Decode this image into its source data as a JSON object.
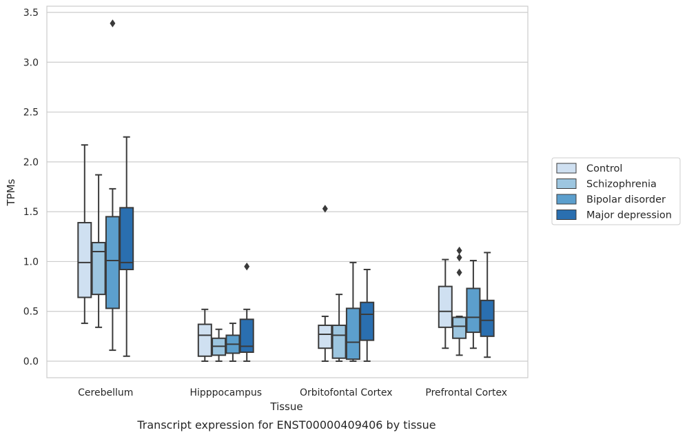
{
  "chart_data": {
    "type": "box",
    "xlabel": "Tissue",
    "ylabel": "TPMs",
    "caption": "Transcript expression for ENST00000409406 by tissue",
    "ylim": [
      -0.17,
      3.57
    ],
    "yticks": [
      "0.0",
      "0.5",
      "1.0",
      "1.5",
      "2.0",
      "2.5",
      "3.0",
      "3.5"
    ],
    "grid": true,
    "legend_position": "right",
    "categories": [
      "Cerebellum",
      "Hipppocampus",
      "Orbitofontal Cortex",
      "Prefrontal Cortex"
    ],
    "series": [
      {
        "name": "Control",
        "color": "#cfe0f1",
        "boxes": [
          {
            "whislo": 0.38,
            "q1": 0.64,
            "med": 0.99,
            "q3": 1.39,
            "whishi": 2.17,
            "fliers": []
          },
          {
            "whislo": 0.0,
            "q1": 0.05,
            "med": 0.26,
            "q3": 0.37,
            "whishi": 0.52,
            "fliers": []
          },
          {
            "whislo": 0.0,
            "q1": 0.13,
            "med": 0.27,
            "q3": 0.36,
            "whishi": 0.45,
            "fliers": [
              1.53
            ]
          },
          {
            "whislo": 0.13,
            "q1": 0.34,
            "med": 0.5,
            "q3": 0.75,
            "whishi": 1.02,
            "fliers": []
          }
        ]
      },
      {
        "name": "Schizophrenia",
        "color": "#9dc6e0",
        "boxes": [
          {
            "whislo": 0.34,
            "q1": 0.67,
            "med": 1.1,
            "q3": 1.19,
            "whishi": 1.87,
            "fliers": []
          },
          {
            "whislo": 0.0,
            "q1": 0.06,
            "med": 0.15,
            "q3": 0.23,
            "whishi": 0.32,
            "fliers": []
          },
          {
            "whislo": 0.0,
            "q1": 0.03,
            "med": 0.26,
            "q3": 0.36,
            "whishi": 0.67,
            "fliers": []
          },
          {
            "whislo": 0.06,
            "q1": 0.23,
            "med": 0.35,
            "q3": 0.44,
            "whishi": 0.45,
            "fliers": [
              0.89,
              1.04,
              1.11
            ]
          }
        ]
      },
      {
        "name": "Bipolar disorder",
        "color": "#5c9fcd",
        "boxes": [
          {
            "whislo": 0.11,
            "q1": 0.53,
            "med": 1.01,
            "q3": 1.45,
            "whishi": 1.73,
            "fliers": [
              3.39
            ]
          },
          {
            "whislo": 0.0,
            "q1": 0.08,
            "med": 0.17,
            "q3": 0.26,
            "whishi": 0.38,
            "fliers": []
          },
          {
            "whislo": 0.0,
            "q1": 0.02,
            "med": 0.19,
            "q3": 0.53,
            "whishi": 0.99,
            "fliers": []
          },
          {
            "whislo": 0.13,
            "q1": 0.29,
            "med": 0.44,
            "q3": 0.73,
            "whishi": 1.01,
            "fliers": []
          }
        ]
      },
      {
        "name": "Major depression",
        "color": "#2a6fb0",
        "boxes": [
          {
            "whislo": 0.05,
            "q1": 0.92,
            "med": 0.99,
            "q3": 1.54,
            "whishi": 2.25,
            "fliers": []
          },
          {
            "whislo": 0.0,
            "q1": 0.09,
            "med": 0.15,
            "q3": 0.42,
            "whishi": 0.52,
            "fliers": [
              0.95
            ]
          },
          {
            "whislo": 0.0,
            "q1": 0.21,
            "med": 0.47,
            "q3": 0.59,
            "whishi": 0.92,
            "fliers": []
          },
          {
            "whislo": 0.04,
            "q1": 0.25,
            "med": 0.41,
            "q3": 0.61,
            "whishi": 1.09,
            "fliers": []
          }
        ]
      }
    ]
  }
}
